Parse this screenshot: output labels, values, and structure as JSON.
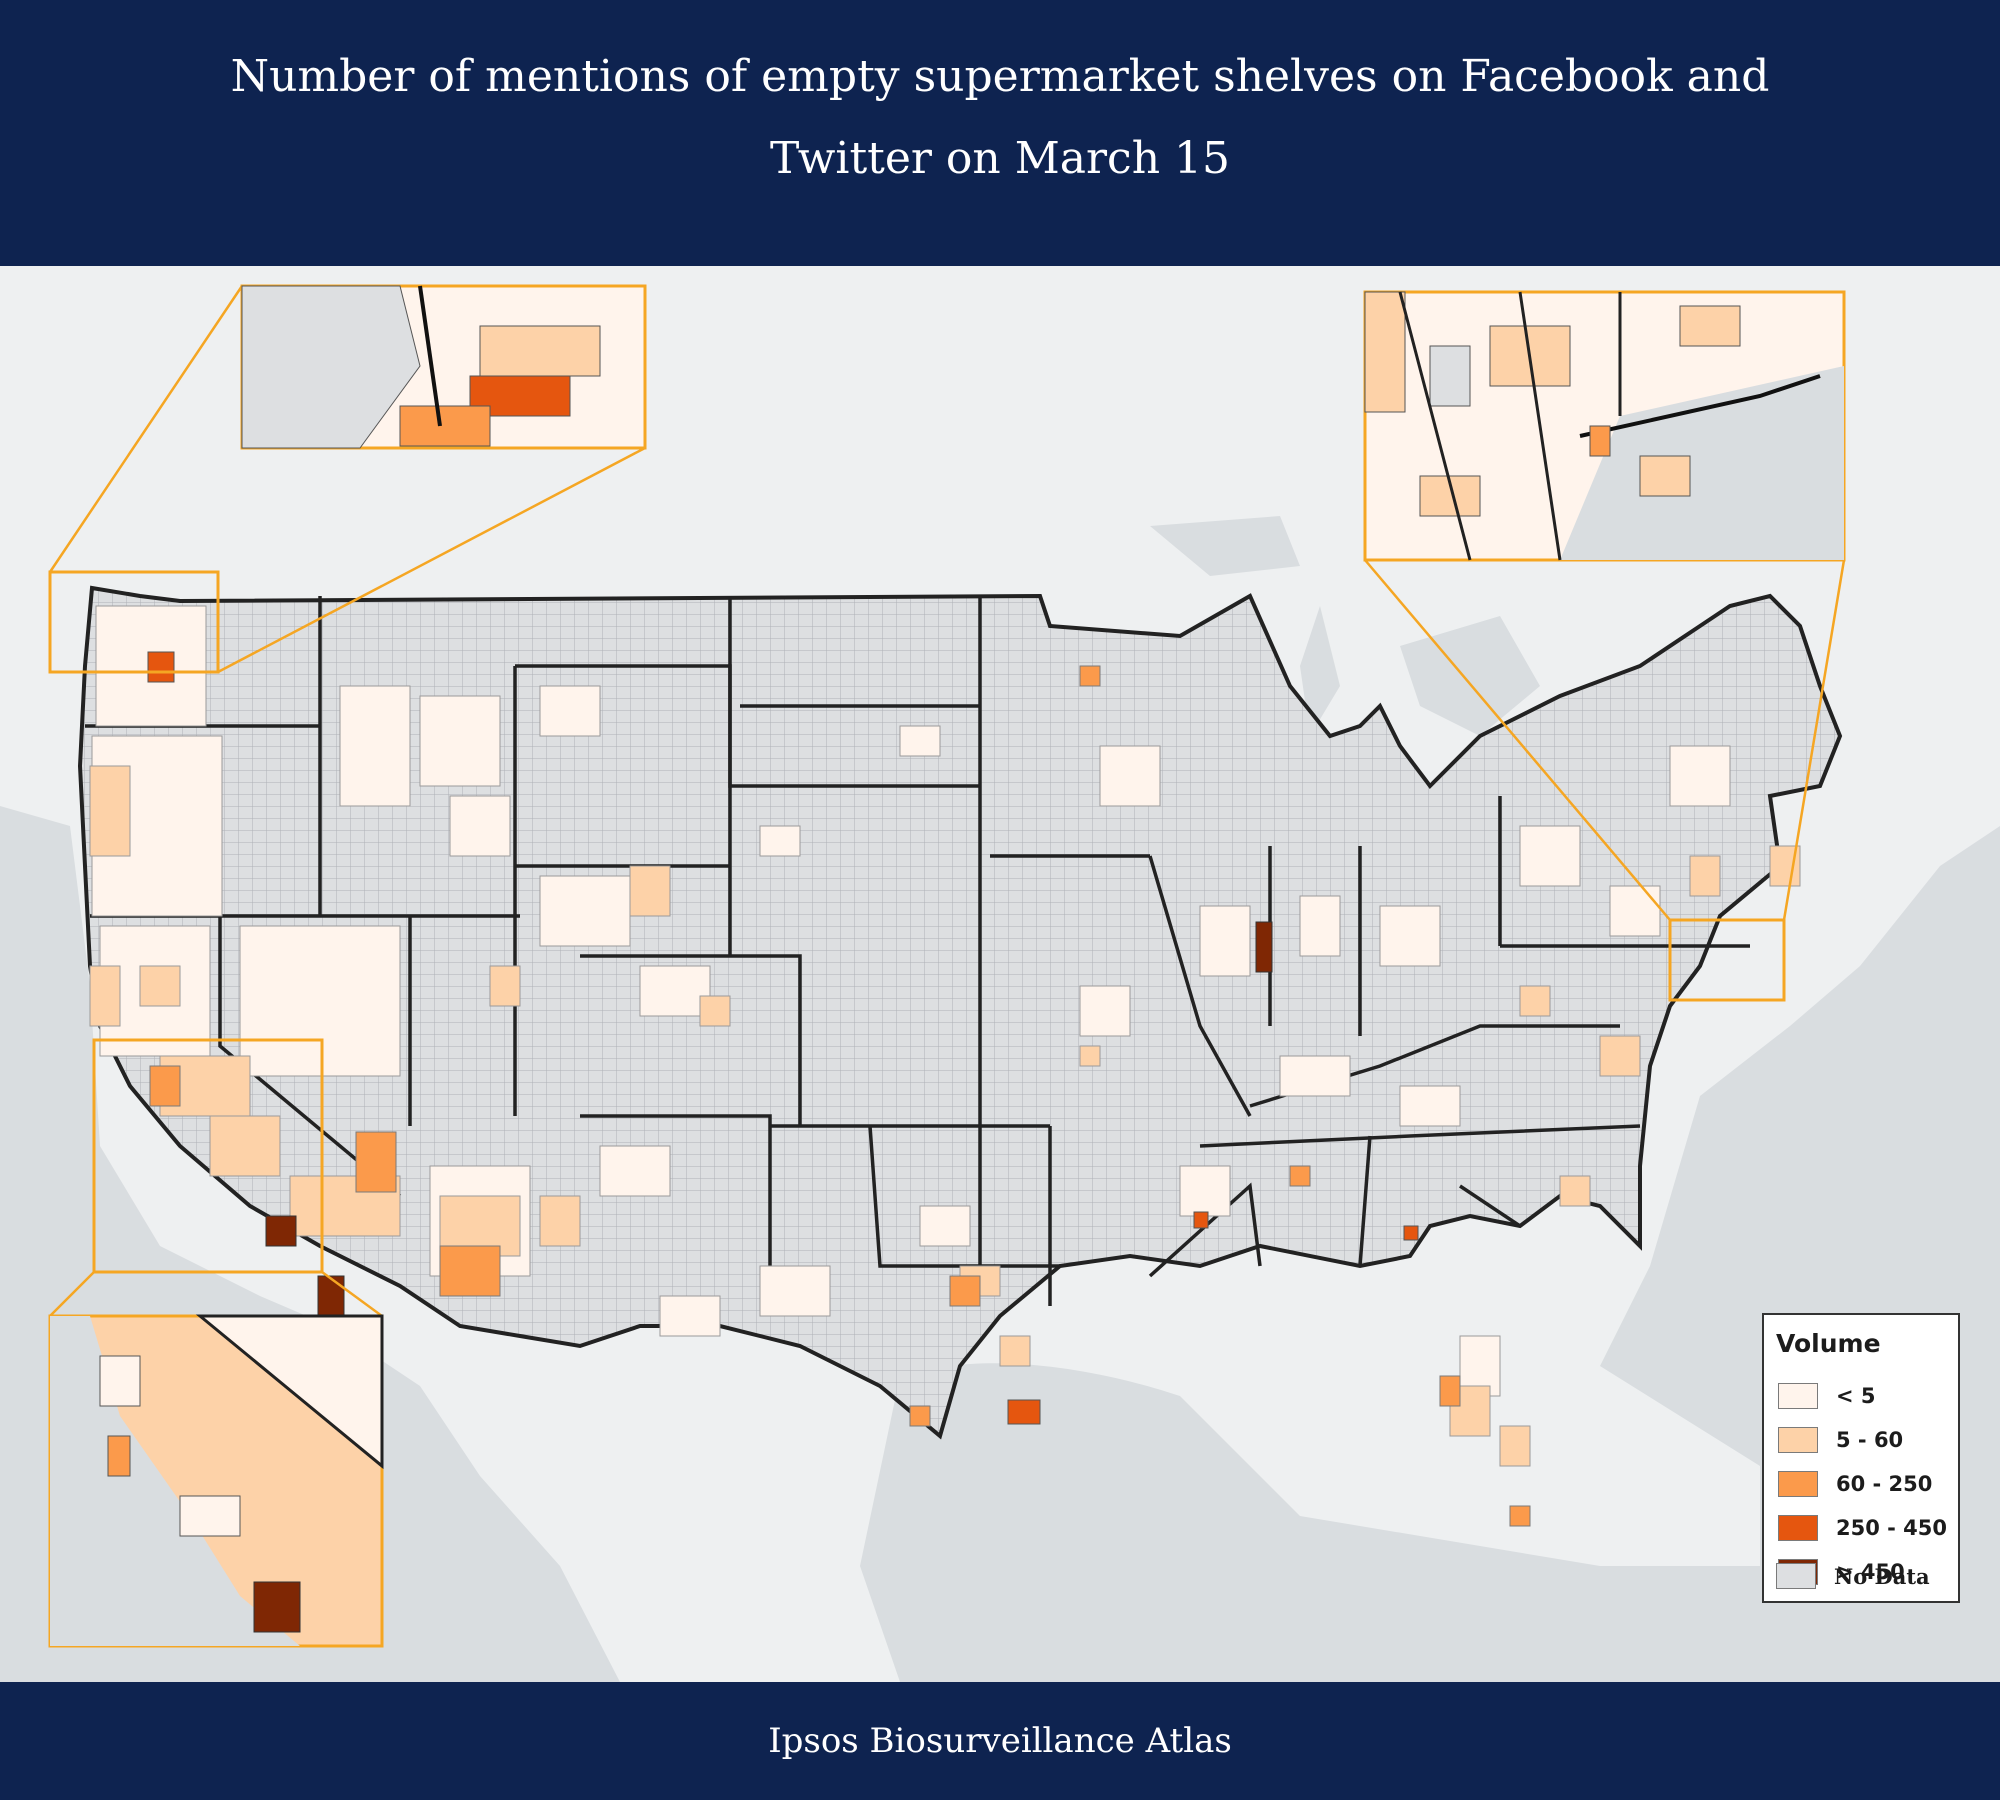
{
  "header": {
    "title": "Number of mentions of empty supermarket shelves on Facebook and Twitter on March 15"
  },
  "footer": {
    "source": "Ipsos Biosurveillance Atlas"
  },
  "legend": {
    "title": "Volume",
    "items": [
      {
        "label": "< 5",
        "color": "#fff4ec"
      },
      {
        "label": "5 - 60",
        "color": "#fdd2a8"
      },
      {
        "label": "60 - 250",
        "color": "#fb9a4b"
      },
      {
        "label": "250 - 450",
        "color": "#e5560f"
      },
      {
        "label": "> 450",
        "color": "#7f2704"
      },
      {
        "label": "No Data",
        "color": "#dddfe1"
      }
    ]
  },
  "colors": {
    "header_bg": "#0e2350",
    "water": "#d9dde0",
    "land": "#eef0f1",
    "inset_border": "#f5a623"
  },
  "insets": [
    "washington-inset",
    "northeast-inset",
    "california-inset"
  ]
}
